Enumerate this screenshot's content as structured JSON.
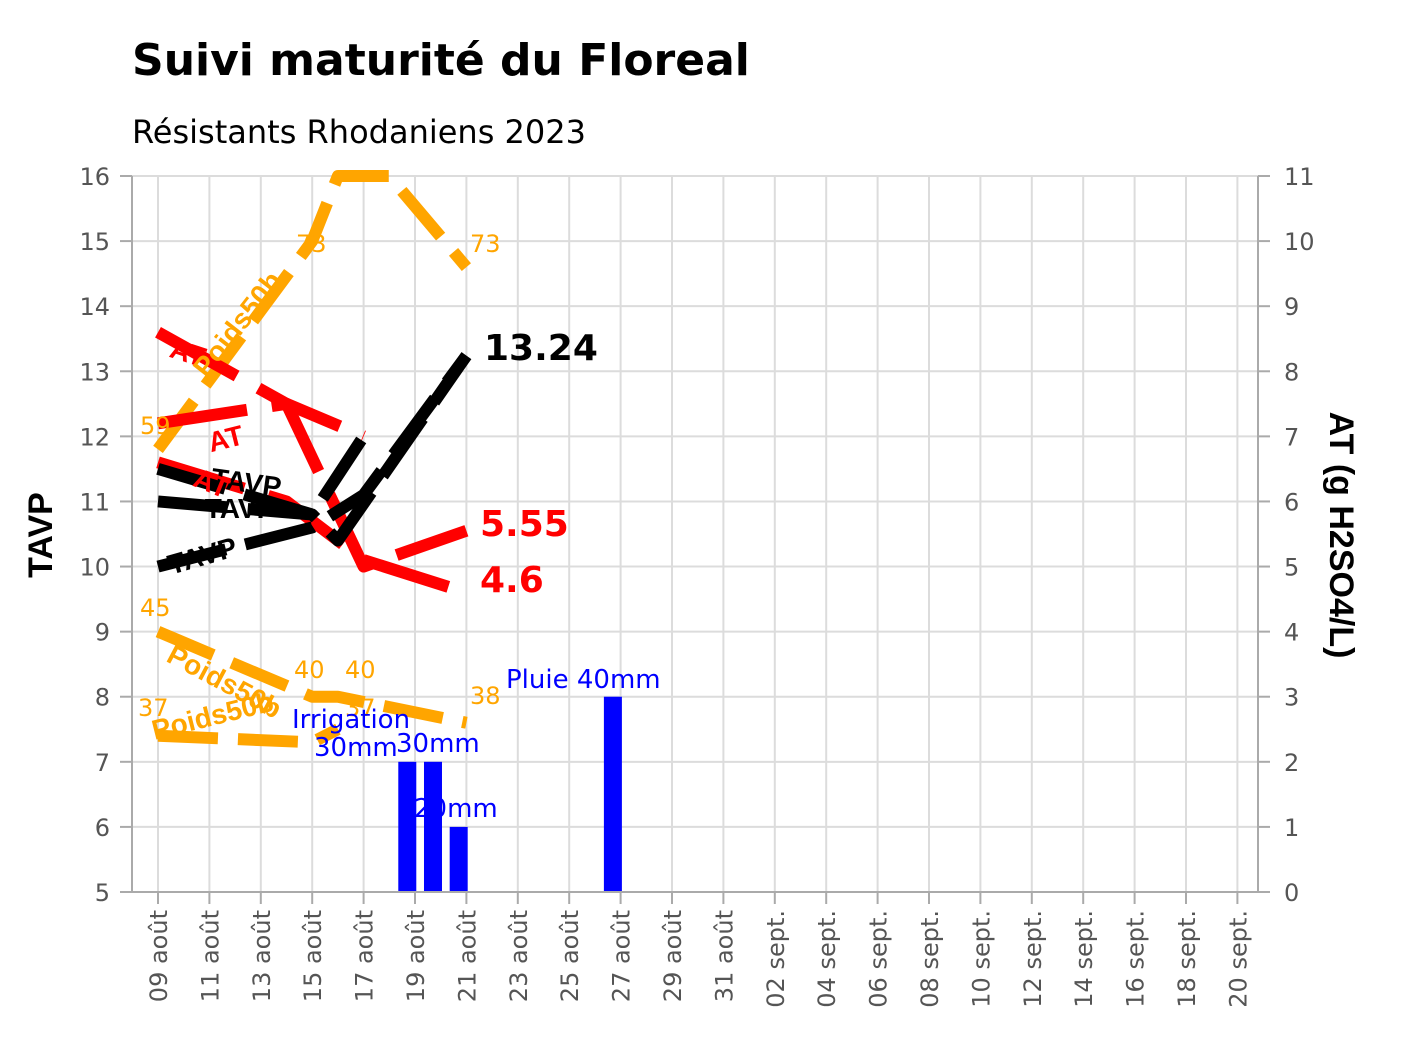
{
  "chart_data": {
    "type": "line",
    "title": "Suivi maturité du Floreal",
    "subtitle": "Résistants Rhodaniens 2023",
    "ylabel": "TAVP",
    "y2label": "AT (g H2SO4/L)",
    "ylim": [
      5,
      16
    ],
    "y2lim": [
      0,
      11
    ],
    "yticks": [
      5,
      6,
      7,
      8,
      9,
      10,
      11,
      12,
      13,
      14,
      15,
      16
    ],
    "y2ticks": [
      0,
      1,
      2,
      3,
      4,
      5,
      6,
      7,
      8,
      9,
      10,
      11
    ],
    "x_start_day": 0,
    "x_end_day": 42,
    "grid": true,
    "xtick_labels": [
      "09 août",
      "11 août",
      "13 août",
      "15 août",
      "17 août",
      "19 août",
      "21 août",
      "23 août",
      "25 août",
      "27 août",
      "29 août",
      "31 août",
      "02 sept.",
      "04 sept.",
      "06 sept.",
      "08 sept.",
      "10 sept.",
      "12 sept.",
      "14 sept.",
      "16 sept.",
      "18 sept.",
      "20 sept."
    ],
    "tavp_series": [
      {
        "name": "TAVP",
        "x": [
          0,
          6,
          8,
          12
        ],
        "y": [
          10.0,
          10.6,
          11.1,
          13.24
        ],
        "label_value": "13.24"
      },
      {
        "name": "TAVP",
        "x": [
          0,
          6,
          7,
          12
        ],
        "y": [
          11.0,
          10.8,
          10.4,
          13.24
        ]
      },
      {
        "name": "TAVP",
        "x": [
          0,
          6,
          8
        ],
        "y": [
          11.5,
          10.8,
          12.0
        ]
      }
    ],
    "at_series": [
      {
        "name": "AT",
        "x": [
          0,
          5,
          8,
          12
        ],
        "y": [
          7.2,
          7.5,
          5.0,
          5.55
        ],
        "label_value": "5.55"
      },
      {
        "name": "AT",
        "x": [
          0,
          5,
          8,
          12
        ],
        "y": [
          6.6,
          6.0,
          5.1,
          4.6
        ],
        "label_value": "4.6"
      },
      {
        "name": "AT",
        "x": [
          0,
          5,
          8
        ],
        "y": [
          8.6,
          7.5,
          7.0
        ]
      }
    ],
    "poids_series": [
      {
        "name": "Poids50b",
        "x": [
          0,
          6,
          7,
          9,
          12
        ],
        "y": [
          11.8,
          15.0,
          16.0,
          16.0,
          14.6
        ],
        "labels": [
          "59",
          "73",
          "73"
        ]
      },
      {
        "name": "Poids50b",
        "x": [
          0,
          6,
          7,
          12
        ],
        "y": [
          9.0,
          8.0,
          8.0,
          7.6
        ],
        "labels": [
          "45",
          "40",
          "40",
          "38"
        ]
      },
      {
        "name": "Poids50b",
        "x": [
          0,
          6,
          7
        ],
        "y": [
          7.4,
          7.3,
          7.5
        ],
        "labels": [
          "37",
          "37"
        ]
      }
    ],
    "rain_bars": [
      {
        "day": 9.7,
        "value": 2
      },
      {
        "day": 10.7,
        "value": 2
      },
      {
        "day": 11.7,
        "value": 1
      },
      {
        "day": 17.7,
        "value": 3
      }
    ],
    "annotations": {
      "irrigation_1": "Irrigation",
      "irrigation_2": "30mm",
      "irrigation_3": "30mm",
      "irrigation_4": "20mm",
      "rain": "Pluie 40mm"
    },
    "colors": {
      "tavp": "#000000",
      "at": "#ff0000",
      "poids": "#ffa500",
      "rain": "#0000ff"
    }
  }
}
